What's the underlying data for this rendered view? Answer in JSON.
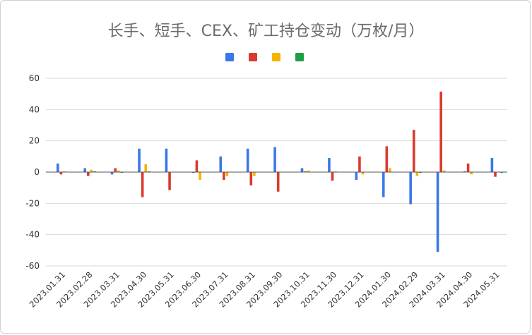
{
  "chart_data": {
    "type": "bar",
    "title": "长手、短手、CEX、矿工持仓变动（万枚/月）",
    "categories": [
      "2023.01.31",
      "2023.02.28",
      "2023.03.31",
      "2023.04.30",
      "2023.05.31",
      "2023.06.30",
      "2023.07.31",
      "2023.08.31",
      "2023.09.30",
      "2023.10.31",
      "2023.11.30",
      "2023.12.31",
      "2024.01.30",
      "2024.02.29",
      "2024.03.31",
      "2024.04.30",
      "2024.05.31"
    ],
    "series": [
      {
        "color": "#3b78e7",
        "values": [
          5.5,
          2.5,
          -1.5,
          15,
          15,
          -0.5,
          10,
          15,
          16,
          2.5,
          9,
          -5,
          -16,
          -20.5,
          -51,
          0.5,
          9
        ]
      },
      {
        "color": "#db3a2f",
        "values": [
          -1.5,
          -2.5,
          2.5,
          -16,
          -11.5,
          7.5,
          -5,
          -8.5,
          -12.5,
          0.5,
          -5.5,
          10,
          16.5,
          27,
          51.5,
          5.5,
          -3
        ]
      },
      {
        "color": "#f4b400",
        "values": [
          0.5,
          1.5,
          1,
          5,
          0,
          -5,
          -2.5,
          -2.5,
          0,
          1,
          0.5,
          -1.5,
          2.5,
          -2.5,
          1,
          -1.5,
          0
        ]
      },
      {
        "color": "#1e9e45",
        "values": [
          0,
          0.5,
          -0.5,
          0.5,
          0,
          0,
          0,
          0,
          0,
          0,
          0,
          0,
          0,
          -0.5,
          0,
          0,
          -0.5
        ]
      }
    ],
    "ylim": [
      -60,
      60
    ],
    "yticks": [
      -60,
      -40,
      -20,
      0,
      20,
      40,
      60
    ],
    "grid": true,
    "legend_position": "top-center"
  }
}
